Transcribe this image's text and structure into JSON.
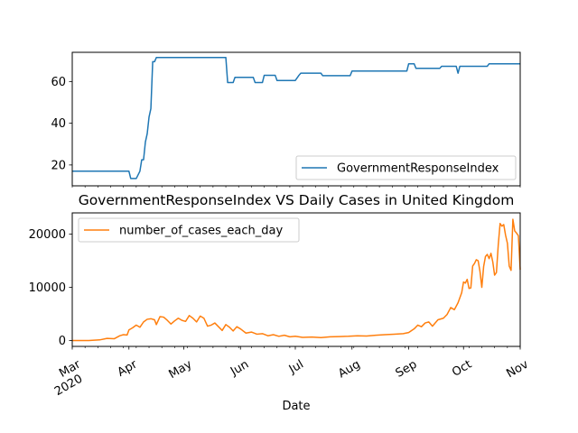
{
  "chart_data": [
    {
      "type": "line",
      "title": "",
      "xlabel": "",
      "ylabel": "",
      "x_range": [
        "2020-03-01",
        "2020-11-01"
      ],
      "ylim": [
        10,
        74
      ],
      "yticks": [
        20,
        40,
        60
      ],
      "legend_placement": "lower-right",
      "grid": false,
      "series": [
        {
          "name": "GovernmentResponseIndex",
          "color": "#1f77b4",
          "points": [
            [
              "2020-03-01",
              17
            ],
            [
              "2020-04-01",
              17
            ],
            [
              "2020-04-02",
              13.5
            ],
            [
              "2020-04-05",
              13.5
            ],
            [
              "2020-04-07",
              17
            ],
            [
              "2020-04-08",
              22.5
            ],
            [
              "2020-04-09",
              22.5
            ],
            [
              "2020-04-10",
              31
            ],
            [
              "2020-04-11",
              35
            ],
            [
              "2020-04-12",
              43
            ],
            [
              "2020-04-13",
              47
            ],
            [
              "2020-04-14",
              69.5
            ],
            [
              "2020-04-15",
              69.5
            ],
            [
              "2020-04-16",
              71.5
            ],
            [
              "2020-05-24",
              71.5
            ],
            [
              "2020-05-25",
              59.5
            ],
            [
              "2020-05-28",
              59.5
            ],
            [
              "2020-05-29",
              62
            ],
            [
              "2020-06-08",
              62
            ],
            [
              "2020-06-09",
              59.5
            ],
            [
              "2020-06-13",
              59.5
            ],
            [
              "2020-06-14",
              63
            ],
            [
              "2020-06-20",
              63
            ],
            [
              "2020-06-21",
              60.5
            ],
            [
              "2020-07-01",
              60.5
            ],
            [
              "2020-07-03",
              63
            ],
            [
              "2020-07-04",
              64
            ],
            [
              "2020-07-15",
              64
            ],
            [
              "2020-07-16",
              62.8
            ],
            [
              "2020-07-31",
              62.8
            ],
            [
              "2020-08-01",
              65
            ],
            [
              "2020-08-31",
              65
            ],
            [
              "2020-09-01",
              68.5
            ],
            [
              "2020-09-04",
              68.5
            ],
            [
              "2020-09-05",
              66.3
            ],
            [
              "2020-09-18",
              66.3
            ],
            [
              "2020-09-19",
              67.3
            ],
            [
              "2020-09-27",
              67.3
            ],
            [
              "2020-09-28",
              64
            ],
            [
              "2020-09-29",
              67.3
            ],
            [
              "2020-10-14",
              67.3
            ],
            [
              "2020-10-15",
              68.5
            ],
            [
              "2020-11-01",
              68.5
            ]
          ]
        }
      ]
    },
    {
      "type": "line",
      "title": "GovernmentResponseIndex VS Daily Cases in United Kingdom",
      "xlabel": "Date",
      "ylabel": "",
      "x_range": [
        "2020-03-01",
        "2020-11-01"
      ],
      "ylim": [
        -1100,
        24000
      ],
      "yticks": [
        0,
        10000,
        20000
      ],
      "xtick_labels": [
        "Mar\n2020",
        "Apr",
        "May",
        "Jun",
        "Jul",
        "Aug",
        "Sep",
        "Oct",
        "Nov"
      ],
      "xtick_dates": [
        "2020-03-01",
        "2020-04-01",
        "2020-05-01",
        "2020-06-01",
        "2020-07-01",
        "2020-08-01",
        "2020-09-01",
        "2020-10-01",
        "2020-11-01"
      ],
      "legend_placement": "upper-left",
      "grid": false,
      "series": [
        {
          "name": "number_of_cases_each_day",
          "color": "#ff7f0e",
          "points": [
            [
              "2020-03-01",
              0
            ],
            [
              "2020-03-10",
              10
            ],
            [
              "2020-03-16",
              120
            ],
            [
              "2020-03-20",
              400
            ],
            [
              "2020-03-24",
              350
            ],
            [
              "2020-03-27",
              900
            ],
            [
              "2020-03-29",
              1100
            ],
            [
              "2020-03-31",
              1050
            ],
            [
              "2020-04-01",
              2000
            ],
            [
              "2020-04-03",
              2400
            ],
            [
              "2020-04-05",
              2900
            ],
            [
              "2020-04-07",
              2500
            ],
            [
              "2020-04-09",
              3500
            ],
            [
              "2020-04-11",
              4000
            ],
            [
              "2020-04-13",
              4100
            ],
            [
              "2020-04-15",
              3900
            ],
            [
              "2020-04-16",
              3000
            ],
            [
              "2020-04-18",
              4500
            ],
            [
              "2020-04-20",
              4400
            ],
            [
              "2020-04-22",
              3800
            ],
            [
              "2020-04-24",
              3100
            ],
            [
              "2020-04-26",
              3700
            ],
            [
              "2020-04-28",
              4200
            ],
            [
              "2020-04-30",
              3800
            ],
            [
              "2020-05-02",
              3600
            ],
            [
              "2020-05-04",
              4700
            ],
            [
              "2020-05-06",
              4200
            ],
            [
              "2020-05-08",
              3500
            ],
            [
              "2020-05-10",
              4600
            ],
            [
              "2020-05-12",
              4200
            ],
            [
              "2020-05-14",
              2700
            ],
            [
              "2020-05-16",
              2900
            ],
            [
              "2020-05-18",
              3300
            ],
            [
              "2020-05-20",
              2600
            ],
            [
              "2020-05-22",
              1900
            ],
            [
              "2020-05-24",
              3000
            ],
            [
              "2020-05-26",
              2500
            ],
            [
              "2020-05-28",
              1800
            ],
            [
              "2020-05-30",
              2600
            ],
            [
              "2020-06-01",
              2200
            ],
            [
              "2020-06-04",
              1400
            ],
            [
              "2020-06-07",
              1600
            ],
            [
              "2020-06-10",
              1200
            ],
            [
              "2020-06-13",
              1300
            ],
            [
              "2020-06-16",
              900
            ],
            [
              "2020-06-19",
              1100
            ],
            [
              "2020-06-22",
              800
            ],
            [
              "2020-06-25",
              1000
            ],
            [
              "2020-06-28",
              700
            ],
            [
              "2020-07-01",
              800
            ],
            [
              "2020-07-05",
              600
            ],
            [
              "2020-07-10",
              650
            ],
            [
              "2020-07-15",
              550
            ],
            [
              "2020-07-20",
              700
            ],
            [
              "2020-07-25",
              750
            ],
            [
              "2020-07-30",
              800
            ],
            [
              "2020-08-04",
              900
            ],
            [
              "2020-08-09",
              850
            ],
            [
              "2020-08-14",
              1000
            ],
            [
              "2020-08-19",
              1100
            ],
            [
              "2020-08-24",
              1200
            ],
            [
              "2020-08-29",
              1300
            ],
            [
              "2020-09-01",
              1500
            ],
            [
              "2020-09-04",
              2200
            ],
            [
              "2020-09-06",
              2900
            ],
            [
              "2020-09-08",
              2600
            ],
            [
              "2020-09-10",
              3300
            ],
            [
              "2020-09-12",
              3500
            ],
            [
              "2020-09-14",
              2700
            ],
            [
              "2020-09-17",
              3900
            ],
            [
              "2020-09-20",
              4200
            ],
            [
              "2020-09-22",
              4900
            ],
            [
              "2020-09-24",
              6200
            ],
            [
              "2020-09-26",
              5800
            ],
            [
              "2020-09-28",
              7100
            ],
            [
              "2020-09-30",
              9000
            ],
            [
              "2020-10-01",
              11000
            ],
            [
              "2020-10-02",
              10800
            ],
            [
              "2020-10-03",
              11500
            ],
            [
              "2020-10-04",
              9800
            ],
            [
              "2020-10-05",
              9900
            ],
            [
              "2020-10-06",
              14000
            ],
            [
              "2020-10-07",
              14500
            ],
            [
              "2020-10-08",
              15200
            ],
            [
              "2020-10-09",
              15000
            ],
            [
              "2020-10-10",
              13000
            ],
            [
              "2020-10-11",
              10000
            ],
            [
              "2020-10-12",
              13900
            ],
            [
              "2020-10-13",
              15800
            ],
            [
              "2020-10-14",
              16200
            ],
            [
              "2020-10-15",
              15400
            ],
            [
              "2020-10-16",
              16400
            ],
            [
              "2020-10-17",
              14800
            ],
            [
              "2020-10-18",
              12300
            ],
            [
              "2020-10-19",
              12800
            ],
            [
              "2020-10-20",
              18000
            ],
            [
              "2020-10-21",
              22000
            ],
            [
              "2020-10-22",
              21500
            ],
            [
              "2020-10-23",
              21800
            ],
            [
              "2020-10-24",
              19800
            ],
            [
              "2020-10-25",
              18300
            ],
            [
              "2020-10-26",
              14000
            ],
            [
              "2020-10-27",
              13200
            ],
            [
              "2020-10-28",
              22800
            ],
            [
              "2020-10-29",
              20600
            ],
            [
              "2020-10-30",
              20200
            ],
            [
              "2020-10-31",
              19700
            ],
            [
              "2020-11-01",
              13300
            ]
          ]
        }
      ]
    }
  ]
}
